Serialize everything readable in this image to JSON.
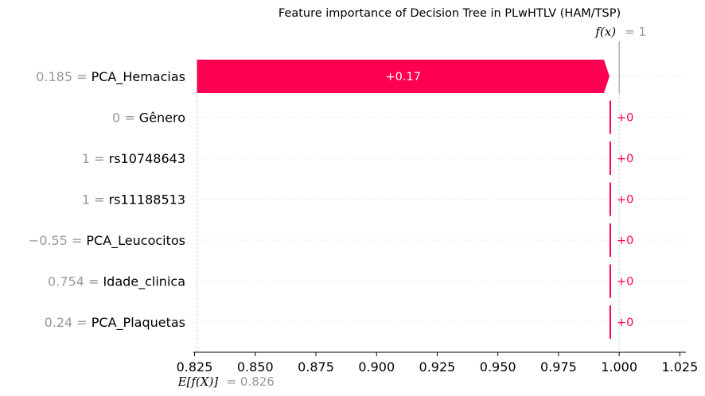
{
  "chart_data": {
    "type": "waterfall",
    "title": "Feature importance of Decision Tree in PLwHTLV (HAM/TSP)",
    "base_value": 0.826,
    "base_value_label": "E[f(X)]",
    "base_value_text": "= 0.826",
    "output_value": 1,
    "output_label": "f(x)",
    "output_text": "= 1",
    "features": [
      {
        "name": "PCA_Hemacias",
        "value": "0.185",
        "contribution": 0.17,
        "label": "+0.17"
      },
      {
        "name": "Gênero",
        "value": "0",
        "contribution": 0,
        "label": "+0"
      },
      {
        "name": "rs10748643",
        "value": "1",
        "contribution": 0,
        "label": "+0"
      },
      {
        "name": "rs11188513",
        "value": "1",
        "contribution": 0,
        "label": "+0"
      },
      {
        "name": "PCA_Leucocitos",
        "value": "−0.55",
        "contribution": 0,
        "label": "+0"
      },
      {
        "name": "Idade_clinica",
        "value": "0.754",
        "contribution": 0,
        "label": "+0"
      },
      {
        "name": "PCA_Plaquetas",
        "value": "0.24",
        "contribution": 0,
        "label": "+0"
      }
    ],
    "xlim": [
      0.8245,
      1.0275
    ],
    "xticks": [
      0.825,
      0.85,
      0.875,
      0.9,
      0.925,
      0.95,
      0.975,
      1.0,
      1.025
    ],
    "xtick_labels": [
      "0.825",
      "0.850",
      "0.875",
      "0.900",
      "0.925",
      "0.950",
      "0.975",
      "1.000",
      "1.025"
    ],
    "colors": {
      "positive": "#ff0051",
      "axis": "#000000",
      "grid": "#cccccc",
      "muted": "#999999"
    }
  }
}
